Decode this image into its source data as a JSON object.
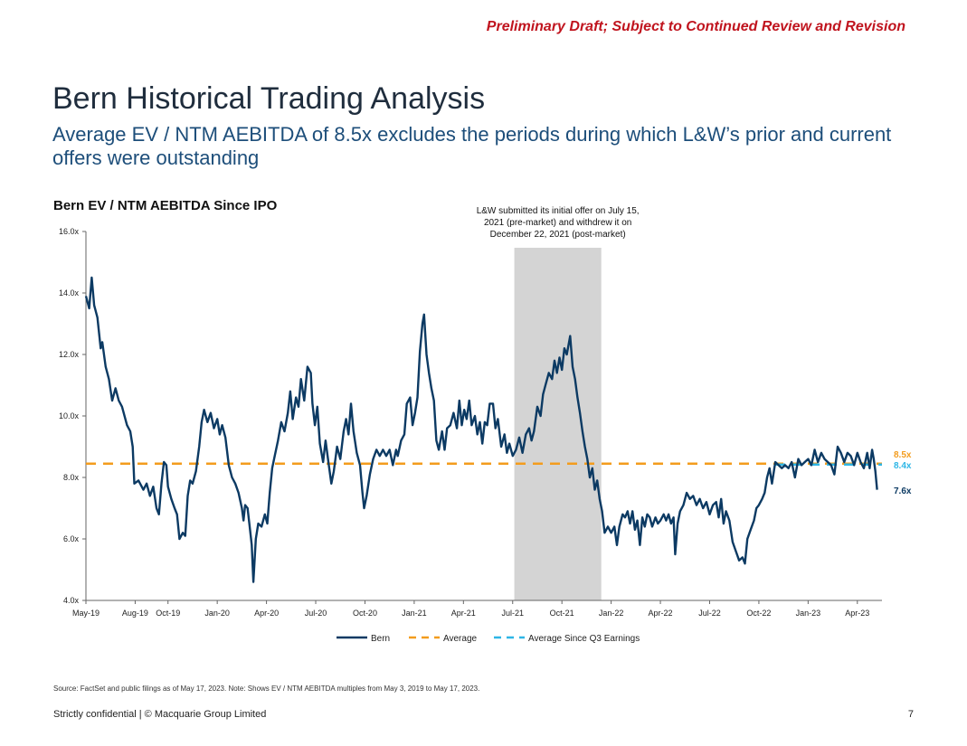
{
  "header": {
    "draft_notice": "Preliminary Draft; Subject to Continued Review and Revision",
    "title": "Bern Historical Trading Analysis",
    "subtitle": "Average EV / NTM AEBITDA of 8.5x excludes the periods during which L&W’s prior and current offers were outstanding"
  },
  "chart_data": {
    "type": "line",
    "title": "Bern EV / NTM AEBITDA Since IPO",
    "ylim": [
      4.0,
      16.0
    ],
    "y_ticks": [
      "4.0x",
      "6.0x",
      "8.0x",
      "10.0x",
      "12.0x",
      "14.0x",
      "16.0x"
    ],
    "x_range_months": [
      0,
      48.5
    ],
    "x_ticks": [
      {
        "label": "May-19",
        "month": 0
      },
      {
        "label": "Aug-19",
        "month": 3
      },
      {
        "label": "Oct-19",
        "month": 5
      },
      {
        "label": "Jan-20",
        "month": 8
      },
      {
        "label": "Apr-20",
        "month": 11
      },
      {
        "label": "Jul-20",
        "month": 14
      },
      {
        "label": "Oct-20",
        "month": 17
      },
      {
        "label": "Jan-21",
        "month": 20
      },
      {
        "label": "Apr-21",
        "month": 23
      },
      {
        "label": "Jul-21",
        "month": 26
      },
      {
        "label": "Oct-21",
        "month": 29
      },
      {
        "label": "Jan-22",
        "month": 32
      },
      {
        "label": "Apr-22",
        "month": 35
      },
      {
        "label": "Jul-22",
        "month": 38
      },
      {
        "label": "Oct-22",
        "month": 41
      },
      {
        "label": "Jan-23",
        "month": 44
      },
      {
        "label": "Apr-23",
        "month": 47
      }
    ],
    "shaded_region": {
      "start_month": 26.1,
      "end_month": 31.4,
      "annotation": [
        "L&W submitted its initial offer on July 15,",
        "2021 (pre-market) and withdrew it on",
        "December 22, 2021 (post-market)"
      ]
    },
    "series": [
      {
        "name": "Bern",
        "color": "#0c3a63",
        "end_label": "7.6x",
        "points": [
          [
            0.0,
            13.9
          ],
          [
            0.2,
            13.5
          ],
          [
            0.35,
            14.5
          ],
          [
            0.5,
            13.6
          ],
          [
            0.7,
            13.2
          ],
          [
            0.9,
            12.2
          ],
          [
            1.0,
            12.4
          ],
          [
            1.2,
            11.6
          ],
          [
            1.4,
            11.2
          ],
          [
            1.6,
            10.5
          ],
          [
            1.8,
            10.9
          ],
          [
            2.0,
            10.5
          ],
          [
            2.2,
            10.3
          ],
          [
            2.5,
            9.7
          ],
          [
            2.7,
            9.5
          ],
          [
            2.85,
            9.0
          ],
          [
            2.95,
            7.8
          ],
          [
            3.2,
            7.9
          ],
          [
            3.5,
            7.6
          ],
          [
            3.7,
            7.8
          ],
          [
            3.9,
            7.4
          ],
          [
            4.1,
            7.7
          ],
          [
            4.3,
            7.0
          ],
          [
            4.45,
            6.8
          ],
          [
            4.6,
            7.8
          ],
          [
            4.75,
            8.5
          ],
          [
            4.9,
            8.4
          ],
          [
            5.0,
            7.7
          ],
          [
            5.2,
            7.3
          ],
          [
            5.4,
            7.0
          ],
          [
            5.55,
            6.8
          ],
          [
            5.7,
            6.0
          ],
          [
            5.9,
            6.2
          ],
          [
            6.05,
            6.1
          ],
          [
            6.2,
            7.4
          ],
          [
            6.35,
            7.9
          ],
          [
            6.5,
            7.8
          ],
          [
            6.7,
            8.2
          ],
          [
            6.9,
            9.0
          ],
          [
            7.05,
            9.8
          ],
          [
            7.2,
            10.2
          ],
          [
            7.4,
            9.8
          ],
          [
            7.6,
            10.1
          ],
          [
            7.8,
            9.6
          ],
          [
            8.0,
            9.9
          ],
          [
            8.15,
            9.4
          ],
          [
            8.3,
            9.7
          ],
          [
            8.5,
            9.3
          ],
          [
            8.7,
            8.4
          ],
          [
            8.9,
            8.0
          ],
          [
            9.1,
            7.8
          ],
          [
            9.3,
            7.5
          ],
          [
            9.5,
            7.0
          ],
          [
            9.6,
            6.6
          ],
          [
            9.7,
            7.1
          ],
          [
            9.85,
            7.0
          ],
          [
            10.0,
            6.3
          ],
          [
            10.1,
            5.8
          ],
          [
            10.2,
            4.6
          ],
          [
            10.35,
            6.0
          ],
          [
            10.5,
            6.5
          ],
          [
            10.7,
            6.4
          ],
          [
            10.9,
            6.8
          ],
          [
            11.05,
            6.5
          ],
          [
            11.2,
            7.5
          ],
          [
            11.35,
            8.3
          ],
          [
            11.5,
            8.7
          ],
          [
            11.7,
            9.2
          ],
          [
            11.9,
            9.8
          ],
          [
            12.1,
            9.5
          ],
          [
            12.3,
            10.1
          ],
          [
            12.45,
            10.8
          ],
          [
            12.6,
            9.9
          ],
          [
            12.8,
            10.6
          ],
          [
            12.95,
            10.3
          ],
          [
            13.1,
            11.2
          ],
          [
            13.3,
            10.5
          ],
          [
            13.5,
            11.6
          ],
          [
            13.7,
            11.4
          ],
          [
            13.8,
            10.4
          ],
          [
            13.95,
            9.7
          ],
          [
            14.1,
            10.3
          ],
          [
            14.25,
            9.1
          ],
          [
            14.45,
            8.5
          ],
          [
            14.6,
            9.2
          ],
          [
            14.8,
            8.4
          ],
          [
            14.95,
            7.8
          ],
          [
            15.1,
            8.2
          ],
          [
            15.3,
            9.0
          ],
          [
            15.5,
            8.6
          ],
          [
            15.7,
            9.5
          ],
          [
            15.85,
            9.9
          ],
          [
            16.0,
            9.4
          ],
          [
            16.15,
            10.4
          ],
          [
            16.3,
            9.5
          ],
          [
            16.5,
            8.8
          ],
          [
            16.7,
            8.4
          ],
          [
            16.85,
            7.5
          ],
          [
            16.95,
            7.0
          ],
          [
            17.1,
            7.4
          ],
          [
            17.3,
            8.1
          ],
          [
            17.5,
            8.6
          ],
          [
            17.7,
            8.9
          ],
          [
            17.9,
            8.7
          ],
          [
            18.1,
            8.9
          ],
          [
            18.3,
            8.7
          ],
          [
            18.5,
            8.9
          ],
          [
            18.7,
            8.4
          ],
          [
            18.9,
            8.9
          ],
          [
            19.0,
            8.7
          ],
          [
            19.2,
            9.2
          ],
          [
            19.4,
            9.4
          ],
          [
            19.55,
            10.4
          ],
          [
            19.75,
            10.6
          ],
          [
            19.9,
            9.7
          ],
          [
            20.05,
            10.1
          ],
          [
            20.2,
            10.6
          ],
          [
            20.35,
            12.1
          ],
          [
            20.5,
            13.0
          ],
          [
            20.6,
            13.3
          ],
          [
            20.75,
            12.0
          ],
          [
            20.9,
            11.4
          ],
          [
            21.05,
            10.9
          ],
          [
            21.2,
            10.5
          ],
          [
            21.35,
            9.2
          ],
          [
            21.5,
            8.9
          ],
          [
            21.7,
            9.5
          ],
          [
            21.85,
            8.9
          ],
          [
            22.0,
            9.6
          ],
          [
            22.2,
            9.7
          ],
          [
            22.4,
            10.1
          ],
          [
            22.6,
            9.6
          ],
          [
            22.75,
            10.5
          ],
          [
            22.9,
            9.7
          ],
          [
            23.05,
            10.2
          ],
          [
            23.2,
            9.9
          ],
          [
            23.35,
            10.5
          ],
          [
            23.5,
            9.7
          ],
          [
            23.7,
            10.0
          ],
          [
            23.85,
            9.4
          ],
          [
            24.0,
            9.8
          ],
          [
            24.15,
            9.1
          ],
          [
            24.3,
            9.8
          ],
          [
            24.45,
            9.7
          ],
          [
            24.6,
            10.4
          ],
          [
            24.8,
            10.4
          ],
          [
            24.95,
            9.6
          ],
          [
            25.1,
            9.9
          ],
          [
            25.3,
            9.0
          ],
          [
            25.5,
            9.4
          ],
          [
            25.65,
            8.8
          ],
          [
            25.8,
            9.1
          ],
          [
            26.0,
            8.7
          ],
          [
            26.2,
            8.9
          ],
          [
            26.4,
            9.3
          ],
          [
            26.6,
            8.8
          ],
          [
            26.8,
            9.4
          ],
          [
            27.0,
            9.6
          ],
          [
            27.15,
            9.2
          ],
          [
            27.3,
            9.5
          ],
          [
            27.5,
            10.3
          ],
          [
            27.7,
            10.0
          ],
          [
            27.85,
            10.7
          ],
          [
            28.0,
            11.0
          ],
          [
            28.2,
            11.4
          ],
          [
            28.4,
            11.2
          ],
          [
            28.55,
            11.8
          ],
          [
            28.7,
            11.4
          ],
          [
            28.85,
            11.9
          ],
          [
            29.0,
            11.5
          ],
          [
            29.15,
            12.2
          ],
          [
            29.3,
            12.0
          ],
          [
            29.5,
            12.6
          ],
          [
            29.65,
            11.6
          ],
          [
            29.8,
            11.2
          ],
          [
            29.95,
            10.6
          ],
          [
            30.1,
            10.1
          ],
          [
            30.25,
            9.5
          ],
          [
            30.4,
            9.0
          ],
          [
            30.55,
            8.6
          ],
          [
            30.7,
            8.0
          ],
          [
            30.85,
            8.3
          ],
          [
            31.0,
            7.6
          ],
          [
            31.15,
            7.9
          ],
          [
            31.3,
            7.3
          ],
          [
            31.45,
            6.9
          ],
          [
            31.6,
            6.2
          ],
          [
            31.8,
            6.4
          ],
          [
            32.0,
            6.2
          ],
          [
            32.2,
            6.4
          ],
          [
            32.35,
            5.8
          ],
          [
            32.5,
            6.4
          ],
          [
            32.7,
            6.8
          ],
          [
            32.85,
            6.7
          ],
          [
            33.0,
            6.9
          ],
          [
            33.15,
            6.5
          ],
          [
            33.3,
            6.9
          ],
          [
            33.45,
            6.3
          ],
          [
            33.6,
            6.6
          ],
          [
            33.75,
            5.8
          ],
          [
            33.9,
            6.7
          ],
          [
            34.05,
            6.4
          ],
          [
            34.2,
            6.8
          ],
          [
            34.35,
            6.7
          ],
          [
            34.5,
            6.4
          ],
          [
            34.7,
            6.7
          ],
          [
            34.85,
            6.5
          ],
          [
            35.0,
            6.6
          ],
          [
            35.2,
            6.8
          ],
          [
            35.35,
            6.6
          ],
          [
            35.5,
            6.8
          ],
          [
            35.65,
            6.5
          ],
          [
            35.8,
            6.7
          ],
          [
            35.9,
            5.5
          ],
          [
            36.05,
            6.5
          ],
          [
            36.2,
            6.9
          ],
          [
            36.4,
            7.1
          ],
          [
            36.6,
            7.5
          ],
          [
            36.8,
            7.3
          ],
          [
            37.0,
            7.4
          ],
          [
            37.2,
            7.1
          ],
          [
            37.4,
            7.3
          ],
          [
            37.6,
            7.0
          ],
          [
            37.8,
            7.2
          ],
          [
            38.0,
            6.8
          ],
          [
            38.2,
            7.1
          ],
          [
            38.4,
            7.2
          ],
          [
            38.55,
            6.7
          ],
          [
            38.7,
            7.3
          ],
          [
            38.85,
            6.5
          ],
          [
            39.0,
            6.9
          ],
          [
            39.2,
            6.6
          ],
          [
            39.4,
            5.9
          ],
          [
            39.6,
            5.6
          ],
          [
            39.8,
            5.3
          ],
          [
            40.0,
            5.4
          ],
          [
            40.15,
            5.2
          ],
          [
            40.3,
            6.0
          ],
          [
            40.5,
            6.3
          ],
          [
            40.7,
            6.6
          ],
          [
            40.85,
            7.0
          ],
          [
            41.0,
            7.1
          ],
          [
            41.2,
            7.3
          ],
          [
            41.35,
            7.5
          ],
          [
            41.5,
            8.0
          ],
          [
            41.65,
            8.3
          ],
          [
            41.8,
            7.8
          ],
          [
            42.0,
            8.5
          ],
          [
            42.2,
            8.4
          ],
          [
            42.4,
            8.3
          ],
          [
            42.6,
            8.4
          ],
          [
            42.8,
            8.3
          ],
          [
            43.0,
            8.5
          ],
          [
            43.2,
            8.0
          ],
          [
            43.4,
            8.6
          ],
          [
            43.6,
            8.4
          ],
          [
            43.8,
            8.5
          ],
          [
            44.0,
            8.6
          ],
          [
            44.2,
            8.4
          ],
          [
            44.4,
            8.9
          ],
          [
            44.6,
            8.5
          ],
          [
            44.8,
            8.8
          ],
          [
            45.0,
            8.6
          ],
          [
            45.2,
            8.5
          ],
          [
            45.4,
            8.4
          ],
          [
            45.6,
            8.1
          ],
          [
            45.8,
            9.0
          ],
          [
            46.0,
            8.8
          ],
          [
            46.2,
            8.5
          ],
          [
            46.4,
            8.8
          ],
          [
            46.6,
            8.7
          ],
          [
            46.8,
            8.4
          ],
          [
            47.0,
            8.8
          ],
          [
            47.2,
            8.5
          ],
          [
            47.4,
            8.3
          ],
          [
            47.6,
            8.8
          ],
          [
            47.75,
            8.3
          ],
          [
            47.9,
            8.9
          ],
          [
            48.0,
            8.6
          ],
          [
            48.1,
            8.2
          ],
          [
            48.2,
            7.6
          ]
        ]
      },
      {
        "name": "Average",
        "color": "#f39c1d",
        "value": 8.45,
        "x_span": [
          0,
          48.5
        ],
        "end_label": "8.5x"
      },
      {
        "name": "Average Since Q3 Earnings",
        "color": "#2eb6e6",
        "value": 8.42,
        "x_span": [
          42.0,
          48.5
        ],
        "end_label": "8.4x"
      }
    ]
  },
  "footnote": "Source: FactSet and public filings as of May 17, 2023. Note: Shows EV / NTM AEBITDA multiples from May 3, 2019 to May 17, 2023.",
  "footer": {
    "confidential": "Strictly confidential | © Macquarie Group Limited",
    "page_number": "7"
  }
}
